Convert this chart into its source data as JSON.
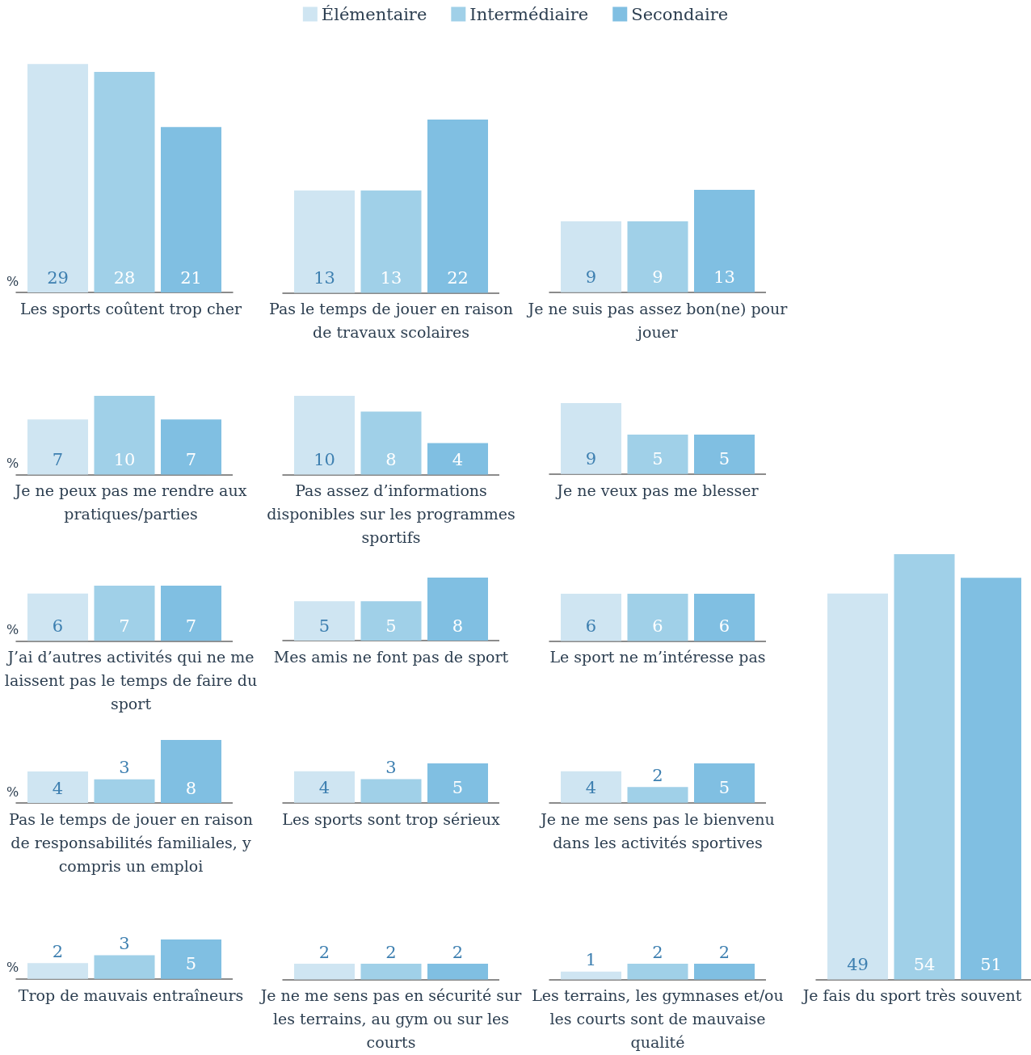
{
  "chart_data": [
    {
      "type": "bar",
      "xlabel": "Les sports coûtent trop cher",
      "ylabel": "%",
      "categories": [
        null
      ],
      "data_labels": true,
      "legend": "top",
      "series": [
        {
          "name": "Élémentaire",
          "color": "#cfe5f2",
          "values": [
            29
          ]
        },
        {
          "name": "Intermédiaire",
          "color": "#a0d0e8",
          "values": [
            28
          ]
        },
        {
          "name": "Secondaire",
          "color": "#80bfe2",
          "values": [
            21
          ]
        }
      ]
    },
    {
      "type": "bar",
      "xlabel": "Pas le temps de jouer en raison de travaux scolaires",
      "categories": [
        null
      ],
      "data_labels": true,
      "series": [
        {
          "color": "#cfe5f2",
          "values": [
            13
          ]
        },
        {
          "color": "#a0d0e8",
          "values": [
            13
          ]
        },
        {
          "color": "#80bfe2",
          "values": [
            22
          ]
        }
      ]
    },
    {
      "type": "bar",
      "xlabel": "Je ne suis pas assez bon(ne) pour jouer",
      "categories": [
        null
      ],
      "data_labels": true,
      "series": [
        {
          "color": "#cfe5f2",
          "values": [
            9
          ]
        },
        {
          "color": "#a0d0e8",
          "values": [
            9
          ]
        },
        {
          "color": "#80bfe2",
          "values": [
            13
          ]
        }
      ]
    },
    {
      "type": "bar",
      "xlabel": "Je ne peux pas me rendre aux pratiques/parties",
      "ylabel": "%",
      "categories": [
        null
      ],
      "data_labels": true,
      "series": [
        {
          "color": "#cfe5f2",
          "values": [
            7
          ]
        },
        {
          "color": "#a0d0e8",
          "values": [
            10
          ]
        },
        {
          "color": "#80bfe2",
          "values": [
            7
          ]
        }
      ]
    },
    {
      "type": "bar",
      "xlabel": "Pas assez d’informations disponibles sur les programmes sportifs",
      "categories": [
        null
      ],
      "data_labels": true,
      "series": [
        {
          "color": "#cfe5f2",
          "values": [
            10
          ]
        },
        {
          "color": "#a0d0e8",
          "values": [
            8
          ]
        },
        {
          "color": "#80bfe2",
          "values": [
            4
          ]
        }
      ]
    },
    {
      "type": "bar",
      "xlabel": "Je ne veux pas me blesser",
      "categories": [
        null
      ],
      "data_labels": true,
      "series": [
        {
          "color": "#cfe5f2",
          "values": [
            9
          ]
        },
        {
          "color": "#a0d0e8",
          "values": [
            5
          ]
        },
        {
          "color": "#80bfe2",
          "values": [
            5
          ]
        }
      ]
    },
    {
      "type": "bar",
      "xlabel": "J’ai d’autres activités qui ne me laissent pas le temps de faire du sport",
      "ylabel": "%",
      "categories": [
        null
      ],
      "data_labels": true,
      "series": [
        {
          "color": "#cfe5f2",
          "values": [
            6
          ]
        },
        {
          "color": "#a0d0e8",
          "values": [
            7
          ]
        },
        {
          "color": "#80bfe2",
          "values": [
            7
          ]
        }
      ]
    },
    {
      "type": "bar",
      "xlabel": "Mes amis ne font pas de sport",
      "categories": [
        null
      ],
      "data_labels": true,
      "series": [
        {
          "color": "#cfe5f2",
          "values": [
            5
          ]
        },
        {
          "color": "#a0d0e8",
          "values": [
            5
          ]
        },
        {
          "color": "#80bfe2",
          "values": [
            8
          ]
        }
      ]
    },
    {
      "type": "bar",
      "xlabel": "Le sport ne m’intéresse pas",
      "categories": [
        null
      ],
      "data_labels": true,
      "series": [
        {
          "color": "#cfe5f2",
          "values": [
            6
          ]
        },
        {
          "color": "#a0d0e8",
          "values": [
            6
          ]
        },
        {
          "color": "#80bfe2",
          "values": [
            6
          ]
        }
      ]
    },
    {
      "type": "bar",
      "xlabel": "Pas le temps de jouer en raison de responsabilités familiales, y compris un emploi",
      "ylabel": "%",
      "categories": [
        null
      ],
      "data_labels": true,
      "series": [
        {
          "color": "#cfe5f2",
          "values": [
            4
          ]
        },
        {
          "color": "#a0d0e8",
          "values": [
            3
          ]
        },
        {
          "color": "#80bfe2",
          "values": [
            8
          ]
        }
      ]
    },
    {
      "type": "bar",
      "xlabel": "Les sports sont trop sérieux",
      "categories": [
        null
      ],
      "data_labels": true,
      "series": [
        {
          "color": "#cfe5f2",
          "values": [
            4
          ]
        },
        {
          "color": "#a0d0e8",
          "values": [
            3
          ]
        },
        {
          "color": "#80bfe2",
          "values": [
            5
          ]
        }
      ]
    },
    {
      "type": "bar",
      "xlabel": "Je ne me sens pas le bienvenu dans les activités sportives",
      "categories": [
        null
      ],
      "data_labels": true,
      "series": [
        {
          "color": "#cfe5f2",
          "values": [
            4
          ]
        },
        {
          "color": "#a0d0e8",
          "values": [
            2
          ]
        },
        {
          "color": "#80bfe2",
          "values": [
            5
          ]
        }
      ]
    },
    {
      "type": "bar",
      "xlabel": "Trop de mauvais entraîneurs",
      "ylabel": "%",
      "categories": [
        null
      ],
      "data_labels": true,
      "series": [
        {
          "color": "#cfe5f2",
          "values": [
            2
          ]
        },
        {
          "color": "#a0d0e8",
          "values": [
            3
          ]
        },
        {
          "color": "#80bfe2",
          "values": [
            5
          ]
        }
      ]
    },
    {
      "type": "bar",
      "xlabel": "Je ne me sens pas en sécurité sur les terrains, au gym ou sur les courts",
      "categories": [
        null
      ],
      "data_labels": true,
      "series": [
        {
          "color": "#cfe5f2",
          "values": [
            2
          ]
        },
        {
          "color": "#a0d0e8",
          "values": [
            2
          ]
        },
        {
          "color": "#80bfe2",
          "values": [
            2
          ]
        }
      ]
    },
    {
      "type": "bar",
      "xlabel": "Les terrains, les gymnases et/ou les courts sont de mauvaise qualité",
      "categories": [
        null
      ],
      "data_labels": true,
      "series": [
        {
          "color": "#cfe5f2",
          "values": [
            1
          ]
        },
        {
          "color": "#a0d0e8",
          "values": [
            2
          ]
        },
        {
          "color": "#80bfe2",
          "values": [
            2
          ]
        }
      ]
    },
    {
      "type": "bar",
      "xlabel": "Je fais du sport très souvent",
      "categories": [
        null
      ],
      "data_labels": true,
      "series": [
        {
          "color": "#cfe5f2",
          "values": [
            49
          ]
        },
        {
          "color": "#a0d0e8",
          "values": [
            54
          ]
        },
        {
          "color": "#80bfe2",
          "values": [
            51
          ]
        }
      ]
    }
  ]
}
